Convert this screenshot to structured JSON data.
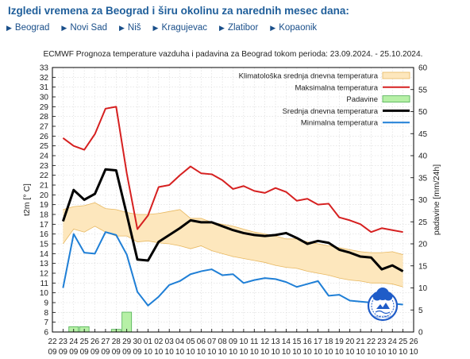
{
  "page": {
    "title": "Izgledi vremena za Beograd i širu okolinu za narednih mesec dana:",
    "arrow_icon": "triangle-right-icon",
    "cities": [
      "Beograd",
      "Novi Sad",
      "Niš",
      "Kragujevac",
      "Zlatibor",
      "Kopaonik"
    ]
  },
  "logo": {
    "icon": "rhmz-logo",
    "text": "RHMZ SRBIJE"
  },
  "chart_data": {
    "type": "line",
    "title": "ECMWF Prognoza temperature vazduha i padavina za Beograd tokom perioda: 23.09.2024. - 25.10.2024.",
    "ylabel": "t2m [° C]",
    "y2label": "padavine [mm/24h]",
    "ylim": [
      6,
      33
    ],
    "y2lim": [
      0,
      60
    ],
    "grid": true,
    "legend_position": "top-right",
    "x_ticks_top": [
      "22",
      "23",
      "24",
      "25",
      "26",
      "27",
      "28",
      "29",
      "30",
      "01",
      "02",
      "03",
      "04",
      "05",
      "06",
      "07",
      "08",
      "09",
      "10",
      "11",
      "12",
      "13",
      "14",
      "15",
      "16",
      "17",
      "18",
      "19",
      "20",
      "21",
      "22",
      "23",
      "24",
      "25",
      "26"
    ],
    "x_ticks_bottom": [
      "09",
      "09",
      "09",
      "09",
      "09",
      "09",
      "09",
      "09",
      "09",
      "10",
      "10",
      "10",
      "10",
      "10",
      "10",
      "10",
      "10",
      "10",
      "10",
      "10",
      "10",
      "10",
      "10",
      "10",
      "10",
      "10",
      "10",
      "10",
      "10",
      "10",
      "10",
      "10",
      "10",
      "10",
      "10"
    ],
    "x": [
      "23.09",
      "24.09",
      "25.09",
      "26.09",
      "27.09",
      "28.09",
      "29.09",
      "30.09",
      "01.10",
      "02.10",
      "03.10",
      "04.10",
      "05.10",
      "06.10",
      "07.10",
      "08.10",
      "09.10",
      "10.10",
      "11.10",
      "12.10",
      "13.10",
      "14.10",
      "15.10",
      "16.10",
      "17.10",
      "18.10",
      "19.10",
      "20.10",
      "21.10",
      "22.10",
      "23.10",
      "24.10",
      "25.10"
    ],
    "series": [
      {
        "name": "Klimatološka srednja dnevna temperatura",
        "kind": "band",
        "color": "#fde7bd",
        "edge_color": "#e8b860",
        "low": [
          15.0,
          16.5,
          16.2,
          16.8,
          16.2,
          15.8,
          15.8,
          15.2,
          15.3,
          15.1,
          15.0,
          14.8,
          14.5,
          14.8,
          14.3,
          14.0,
          13.7,
          13.5,
          13.3,
          13.1,
          12.8,
          12.6,
          12.5,
          12.2,
          12.0,
          11.8,
          11.5,
          11.3,
          11.2,
          11.0,
          11.0,
          10.9,
          10.6
        ],
        "high": [
          18.5,
          18.8,
          18.9,
          19.2,
          18.6,
          18.5,
          18.2,
          18.0,
          18.0,
          18.1,
          18.3,
          18.5,
          17.6,
          17.6,
          17.2,
          17.0,
          16.8,
          16.5,
          16.2,
          16.0,
          15.8,
          15.5,
          15.5,
          15.2,
          15.0,
          14.8,
          14.6,
          14.4,
          14.2,
          14.1,
          14.1,
          14.2,
          13.9
        ]
      },
      {
        "name": "Maksimalna temperatura",
        "color": "#d62020",
        "values": [
          25.8,
          25.0,
          24.6,
          26.2,
          28.8,
          29.0,
          22.2,
          16.5,
          17.9,
          20.8,
          21.0,
          22.0,
          22.9,
          22.2,
          22.1,
          21.5,
          20.6,
          20.9,
          20.4,
          20.2,
          20.7,
          20.3,
          19.4,
          19.6,
          19.0,
          19.1,
          17.7,
          17.4,
          17.0,
          16.2,
          16.6,
          16.4,
          16.2
        ]
      },
      {
        "name": "Padavine",
        "kind": "bar",
        "color": "#b6f0a6",
        "edge_color": "#4caf50",
        "values": [
          0,
          1.2,
          1.2,
          0,
          0,
          0.6,
          4.5,
          0,
          0,
          0,
          0,
          0,
          0,
          0,
          0,
          0,
          0,
          0,
          0,
          0,
          0,
          0,
          0,
          0,
          0,
          0,
          0,
          0,
          0,
          0,
          0,
          0,
          0
        ]
      },
      {
        "name": "Srednja dnevna temperatura",
        "color": "#000000",
        "values": [
          17.3,
          20.5,
          19.5,
          20.1,
          22.6,
          22.5,
          18.0,
          13.4,
          13.3,
          15.2,
          15.9,
          16.6,
          17.4,
          17.2,
          17.2,
          16.8,
          16.4,
          16.1,
          15.9,
          15.8,
          15.9,
          16.1,
          15.6,
          15.0,
          15.3,
          15.1,
          14.4,
          14.1,
          13.7,
          13.6,
          12.4,
          12.8,
          12.2
        ]
      },
      {
        "name": "Minimalna temperatura",
        "color": "#1f7fd6",
        "values": [
          10.5,
          16.0,
          14.1,
          14.0,
          16.2,
          15.9,
          13.9,
          10.1,
          8.7,
          9.6,
          10.8,
          11.2,
          11.9,
          12.2,
          12.4,
          11.8,
          11.9,
          11.0,
          11.3,
          11.5,
          11.4,
          11.1,
          10.6,
          10.9,
          11.2,
          9.7,
          9.8,
          9.2,
          9.1,
          9.0,
          8.9,
          8.9,
          8.8
        ]
      }
    ]
  }
}
